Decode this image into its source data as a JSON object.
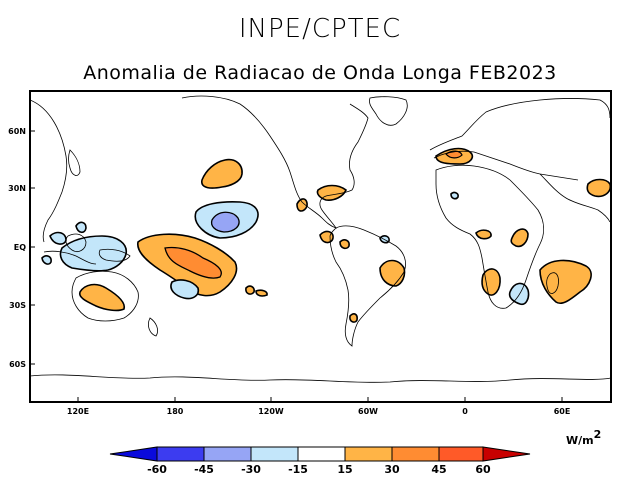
{
  "header": {
    "agency": "INPE/CPTEC",
    "title": "Anomalia de Radiacao de Onda Longa FEB2023"
  },
  "map": {
    "lat_labels": [
      "60N",
      "30N",
      "EQ",
      "30S",
      "60S"
    ],
    "lon_labels": [
      "120E",
      "180",
      "120W",
      "60W",
      "0",
      "60E"
    ]
  },
  "colorbar": {
    "units_text": "W/m",
    "units_exp": "2",
    "labels": [
      "-60",
      "-45",
      "-30",
      "-15",
      "15",
      "30",
      "45",
      "60"
    ],
    "colors": {
      "below_-60": "#0a0adc",
      "-60_-45": "#3c3cf0",
      "-45_-30": "#96a5f5",
      "-30_-15": "#c3e6fa",
      "-15_15": "#ffffff",
      "15_30": "#ffb446",
      "30_45": "#ff8c32",
      "45_60": "#ff5a28",
      "above_60": "#c80000"
    }
  }
}
